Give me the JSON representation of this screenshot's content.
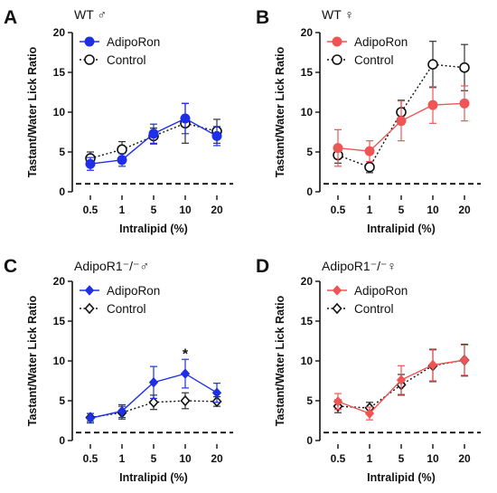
{
  "chart_data": [
    {
      "panel": "A",
      "type": "line",
      "title": "WT ♂",
      "xlabel": "Intralipid (%)",
      "ylabel": "Tastant/Water Lick Ratio",
      "categories": [
        "0.5",
        "1",
        "5",
        "10",
        "20"
      ],
      "ylim": [
        0,
        20
      ],
      "yticks": [
        0,
        5,
        10,
        15,
        20
      ],
      "reference_line": 1,
      "legend_position": "top-left",
      "series": [
        {
          "name": "AdipoRon",
          "marker": "circle-filled",
          "color": "#1f2fe8",
          "line": "solid",
          "values": [
            3.5,
            4.0,
            7.3,
            9.2,
            7.0
          ],
          "errors": [
            0.8,
            0.8,
            1.2,
            1.9,
            1.2
          ]
        },
        {
          "name": "Control",
          "marker": "circle-open",
          "color": "#111111",
          "line": "dotted",
          "values": [
            4.2,
            5.3,
            7.0,
            8.6,
            7.6
          ],
          "errors": [
            0.8,
            1.0,
            1.0,
            2.5,
            1.5
          ]
        }
      ],
      "annotations": []
    },
    {
      "panel": "B",
      "type": "line",
      "title": "WT ♀",
      "xlabel": "Intralipid (%)",
      "ylabel": "Tastant/Water Lick Ratio",
      "categories": [
        "0.5",
        "1",
        "5",
        "10",
        "20"
      ],
      "ylim": [
        0,
        20
      ],
      "yticks": [
        0,
        5,
        10,
        15,
        20
      ],
      "reference_line": 1,
      "legend_position": "top-left",
      "series": [
        {
          "name": "AdipoRon",
          "marker": "circle-filled",
          "color": "#f05555",
          "line": "solid",
          "values": [
            5.5,
            5.1,
            8.9,
            10.9,
            11.1
          ],
          "errors": [
            2.3,
            1.3,
            2.5,
            2.3,
            2.2
          ]
        },
        {
          "name": "Control",
          "marker": "circle-open",
          "color": "#111111",
          "line": "dotted",
          "values": [
            4.6,
            3.1,
            10.0,
            16.0,
            15.6
          ],
          "errors": [
            1.0,
            0.7,
            1.5,
            2.9,
            2.9
          ]
        }
      ],
      "annotations": []
    },
    {
      "panel": "C",
      "type": "line",
      "title": "AdipoR1⁻/⁻♂",
      "xlabel": "Intralipid (%)",
      "ylabel": "Tastant/Water Lick Ratio",
      "categories": [
        "0.5",
        "1",
        "5",
        "10",
        "20"
      ],
      "ylim": [
        0,
        20
      ],
      "yticks": [
        0,
        5,
        10,
        15,
        20
      ],
      "reference_line": 1,
      "legend_position": "top-left",
      "series": [
        {
          "name": "AdipoRon",
          "marker": "diamond-filled",
          "color": "#1f2fe8",
          "line": "solid",
          "values": [
            2.8,
            3.7,
            7.3,
            8.4,
            6.0
          ],
          "errors": [
            0.6,
            0.8,
            2.0,
            1.8,
            1.2
          ]
        },
        {
          "name": "Control",
          "marker": "diamond-open",
          "color": "#111111",
          "line": "dotted",
          "values": [
            2.9,
            3.5,
            4.8,
            5.0,
            4.9
          ],
          "errors": [
            0.5,
            0.8,
            0.9,
            1.0,
            0.6
          ]
        }
      ],
      "annotations": [
        {
          "text": "*",
          "category": "10",
          "y": 10.5
        }
      ]
    },
    {
      "panel": "D",
      "type": "line",
      "title": "AdipoR1⁻/⁻♀",
      "xlabel": "Intralipid (%)",
      "ylabel": "Tastant/Water Lick Ratio",
      "categories": [
        "0.5",
        "1",
        "5",
        "10",
        "20"
      ],
      "ylim": [
        0,
        20
      ],
      "yticks": [
        0,
        5,
        10,
        15,
        20
      ],
      "reference_line": 1,
      "legend_position": "top-left",
      "series": [
        {
          "name": "AdipoRon",
          "marker": "diamond-filled",
          "color": "#f05555",
          "line": "solid",
          "values": [
            4.9,
            3.4,
            7.6,
            9.5,
            10.1
          ],
          "errors": [
            1.0,
            0.8,
            1.8,
            2.0,
            1.9
          ]
        },
        {
          "name": "Control",
          "marker": "diamond-open",
          "color": "#111111",
          "line": "dotted",
          "values": [
            4.3,
            4.1,
            7.0,
            9.4,
            10.1
          ],
          "errors": [
            0.8,
            0.7,
            1.3,
            2.0,
            2.0
          ]
        }
      ],
      "annotations": []
    }
  ]
}
